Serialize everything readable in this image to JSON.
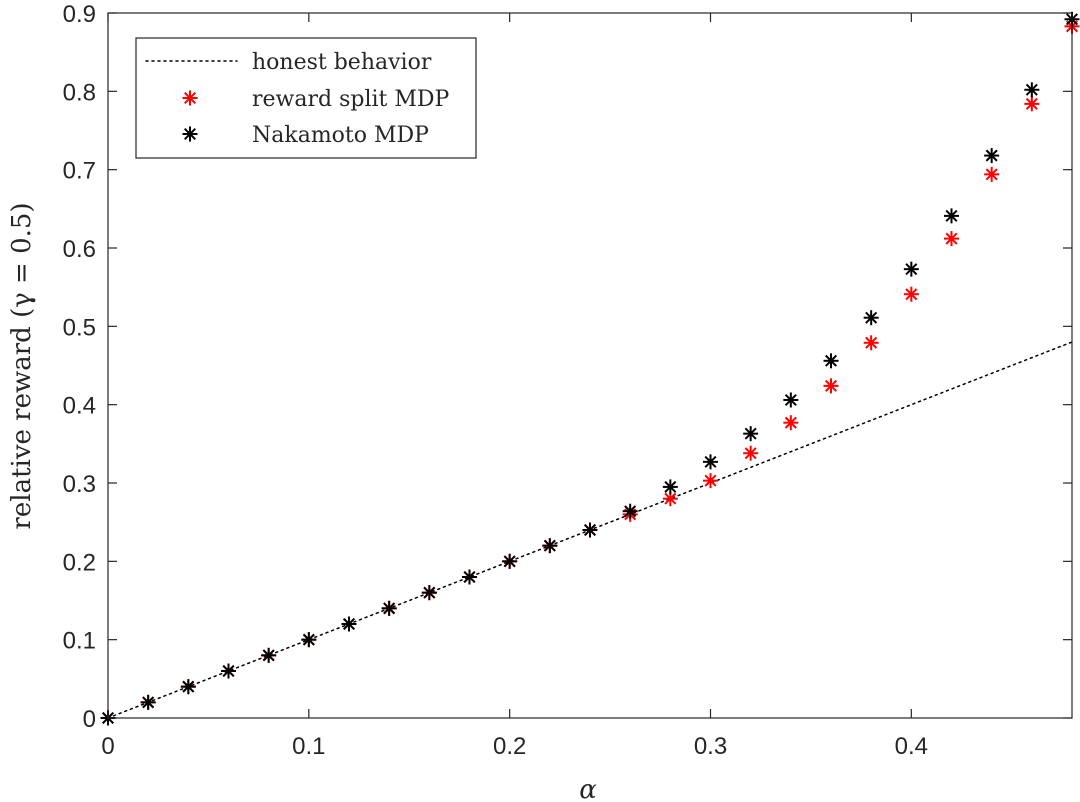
{
  "chart_data": {
    "type": "scatter",
    "title": "",
    "xlabel": "α",
    "ylabel": "relative reward (γ = 0.5)",
    "xlim": [
      0,
      0.48
    ],
    "ylim": [
      0,
      0.9
    ],
    "xticks": [
      0,
      0.1,
      0.2,
      0.3,
      0.4
    ],
    "xtick_labels": [
      "0",
      "0.1",
      "0.2",
      "0.3",
      "0.4"
    ],
    "yticks": [
      0,
      0.1,
      0.2,
      0.3,
      0.4,
      0.5,
      0.6,
      0.7,
      0.8,
      0.9
    ],
    "ytick_labels": [
      "0",
      "0.1",
      "0.2",
      "0.3",
      "0.4",
      "0.5",
      "0.6",
      "0.7",
      "0.8",
      "0.9"
    ],
    "grid": false,
    "legend_position": "top-left",
    "series": [
      {
        "name": "honest behavior",
        "kind": "line",
        "style": "dotted",
        "color": "#000000",
        "x": [
          0,
          0.48
        ],
        "y": [
          0,
          0.48
        ]
      },
      {
        "name": "reward split MDP",
        "kind": "marker",
        "marker": "asterisk",
        "color": "#ff0000",
        "x": [
          0,
          0.02,
          0.04,
          0.06,
          0.08,
          0.1,
          0.12,
          0.14,
          0.16,
          0.18,
          0.2,
          0.22,
          0.24,
          0.26,
          0.28,
          0.3,
          0.32,
          0.34,
          0.36,
          0.38,
          0.4,
          0.42,
          0.44,
          0.46,
          0.48
        ],
        "y": [
          0,
          0.02,
          0.04,
          0.06,
          0.08,
          0.1,
          0.12,
          0.14,
          0.16,
          0.18,
          0.2,
          0.22,
          0.24,
          0.26,
          0.28,
          0.303,
          0.338,
          0.377,
          0.424,
          0.479,
          0.541,
          0.612,
          0.694,
          0.784,
          0.883
        ]
      },
      {
        "name": "Nakamoto MDP",
        "kind": "marker",
        "marker": "asterisk",
        "color": "#000000",
        "x": [
          0,
          0.02,
          0.04,
          0.06,
          0.08,
          0.1,
          0.12,
          0.14,
          0.16,
          0.18,
          0.2,
          0.22,
          0.24,
          0.26,
          0.28,
          0.3,
          0.32,
          0.34,
          0.36,
          0.38,
          0.4,
          0.42,
          0.44,
          0.46,
          0.48
        ],
        "y": [
          0,
          0.02,
          0.04,
          0.06,
          0.08,
          0.1,
          0.12,
          0.14,
          0.16,
          0.18,
          0.2,
          0.22,
          0.24,
          0.264,
          0.295,
          0.327,
          0.363,
          0.406,
          0.456,
          0.511,
          0.573,
          0.641,
          0.718,
          0.802,
          0.892
        ]
      }
    ]
  }
}
